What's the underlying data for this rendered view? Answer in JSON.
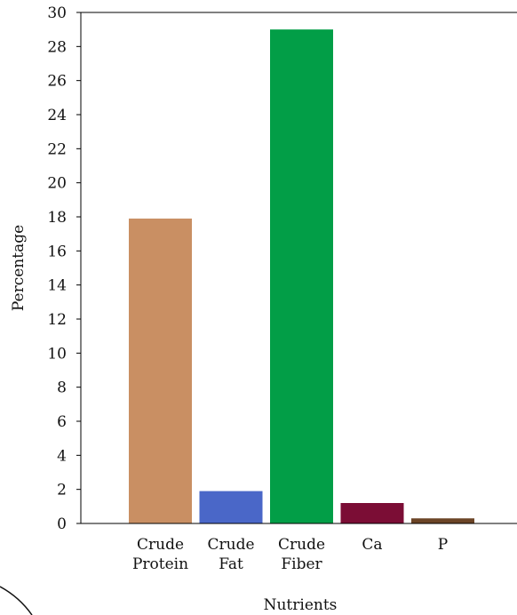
{
  "chart_data": {
    "type": "bar",
    "categories": [
      [
        "Crude",
        "Protein"
      ],
      [
        "Crude",
        "Fat"
      ],
      [
        "Crude",
        "Fiber"
      ],
      [
        "Ca"
      ],
      [
        "P"
      ]
    ],
    "values": [
      17.9,
      1.9,
      29.0,
      1.2,
      0.3
    ],
    "colors": [
      "#c98f63",
      "#4a67c8",
      "#029e47",
      "#7b0d35",
      "#6b4426"
    ],
    "xlabel": "Nutrients",
    "ylabel": "Percentage",
    "ylim": [
      0,
      30
    ],
    "yticks": [
      "0",
      "2",
      "4",
      "6",
      "8",
      "10",
      "12",
      "14",
      "16",
      "18",
      "20",
      "22",
      "24",
      "26",
      "28",
      "30"
    ],
    "grid": false,
    "legend": "none"
  }
}
